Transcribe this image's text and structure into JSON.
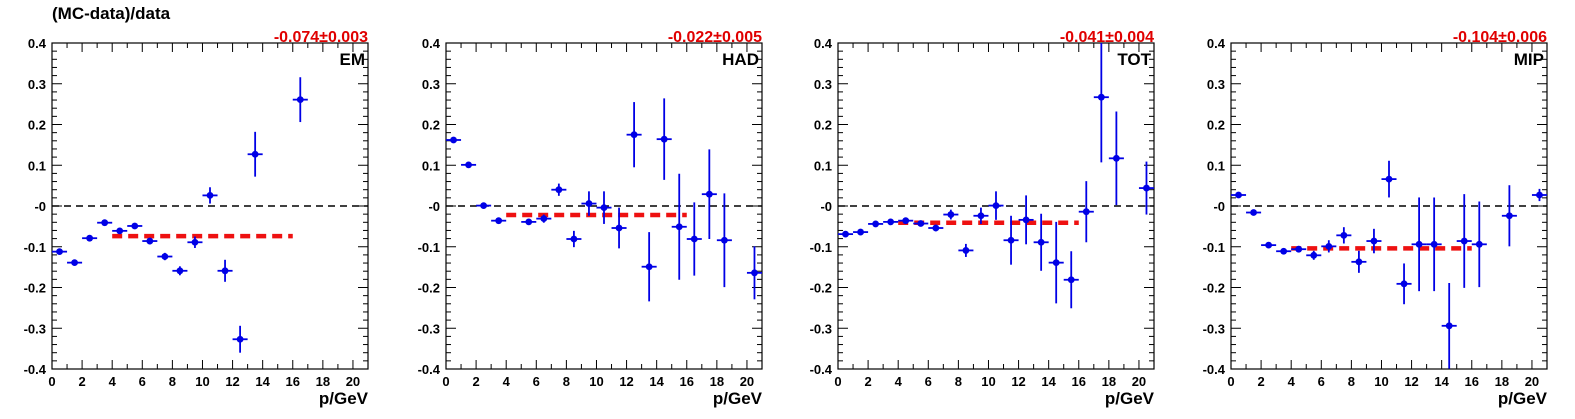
{
  "figure": {
    "ylabel": "(MC-data)/data"
  },
  "chart_data": [
    {
      "type": "scatter",
      "panel_label": "EM",
      "fit_result": "-0.074±0.003",
      "xlabel": "p/GeV",
      "ylabel": "(MC-data)/data",
      "xlim": [
        0,
        21
      ],
      "ylim": [
        -0.4,
        0.4
      ],
      "xticks": [
        "0",
        "2",
        "4",
        "6",
        "8",
        "10",
        "12",
        "14",
        "16",
        "18",
        "20"
      ],
      "yticks": [
        "-0.4",
        "-0.3",
        "-0.2",
        "-0.1",
        "-0",
        "0.1",
        "0.2",
        "0.3",
        "0.4"
      ],
      "reference_line": 0,
      "fit_line": {
        "x": [
          4,
          16
        ],
        "y": -0.074
      },
      "points": [
        {
          "x": 0.5,
          "y": -0.112,
          "err": 0.006
        },
        {
          "x": 1.5,
          "y": -0.139,
          "err": 0.005
        },
        {
          "x": 2.5,
          "y": -0.079,
          "err": 0.005
        },
        {
          "x": 3.5,
          "y": -0.041,
          "err": 0.005
        },
        {
          "x": 4.5,
          "y": -0.061,
          "err": 0.006
        },
        {
          "x": 5.5,
          "y": -0.049,
          "err": 0.006
        },
        {
          "x": 6.5,
          "y": -0.086,
          "err": 0.008
        },
        {
          "x": 7.5,
          "y": -0.124,
          "err": 0.009
        },
        {
          "x": 8.5,
          "y": -0.159,
          "err": 0.011
        },
        {
          "x": 9.5,
          "y": -0.089,
          "err": 0.014
        },
        {
          "x": 10.5,
          "y": 0.026,
          "err": 0.02
        },
        {
          "x": 11.5,
          "y": -0.159,
          "err": 0.027
        },
        {
          "x": 12.5,
          "y": -0.327,
          "err": 0.033
        },
        {
          "x": 13.5,
          "y": 0.127,
          "err": 0.055
        },
        {
          "x": 16.5,
          "y": 0.261,
          "err": 0.055
        }
      ]
    },
    {
      "type": "scatter",
      "panel_label": "HAD",
      "fit_result": "-0.022±0.005",
      "xlabel": "p/GeV",
      "ylabel": "",
      "xlim": [
        0,
        21
      ],
      "ylim": [
        -0.4,
        0.4
      ],
      "xticks": [
        "0",
        "2",
        "4",
        "6",
        "8",
        "10",
        "12",
        "14",
        "16",
        "18",
        "20"
      ],
      "yticks": [
        "-0.4",
        "-0.3",
        "-0.2",
        "-0.1",
        "-0",
        "0.1",
        "0.2",
        "0.3",
        "0.4"
      ],
      "reference_line": 0,
      "fit_line": {
        "x": [
          4,
          16
        ],
        "y": -0.022
      },
      "points": [
        {
          "x": 0.5,
          "y": 0.162,
          "err": 0.005
        },
        {
          "x": 1.5,
          "y": 0.101,
          "err": 0.004
        },
        {
          "x": 2.5,
          "y": 0.001,
          "err": 0.004
        },
        {
          "x": 3.5,
          "y": -0.036,
          "err": 0.005
        },
        {
          "x": 5.5,
          "y": -0.039,
          "err": 0.006
        },
        {
          "x": 6.5,
          "y": -0.031,
          "err": 0.01
        },
        {
          "x": 7.5,
          "y": 0.04,
          "err": 0.015
        },
        {
          "x": 8.5,
          "y": -0.081,
          "err": 0.02
        },
        {
          "x": 9.5,
          "y": 0.006,
          "err": 0.03
        },
        {
          "x": 10.5,
          "y": -0.004,
          "err": 0.04
        },
        {
          "x": 11.5,
          "y": -0.054,
          "err": 0.05
        },
        {
          "x": 12.5,
          "y": 0.175,
          "err": 0.08
        },
        {
          "x": 13.5,
          "y": -0.149,
          "err": 0.085
        },
        {
          "x": 14.5,
          "y": 0.164,
          "err": 0.1
        },
        {
          "x": 15.5,
          "y": -0.051,
          "err": 0.13
        },
        {
          "x": 16.5,
          "y": -0.081,
          "err": 0.09
        },
        {
          "x": 17.5,
          "y": 0.029,
          "err": 0.11
        },
        {
          "x": 18.5,
          "y": -0.084,
          "err": 0.115
        },
        {
          "x": 20.5,
          "y": -0.164,
          "err": 0.065
        }
      ]
    },
    {
      "type": "scatter",
      "panel_label": "TOT",
      "fit_result": "-0.041±0.004",
      "xlabel": "p/GeV",
      "ylabel": "",
      "xlim": [
        0,
        21
      ],
      "ylim": [
        -0.4,
        0.4
      ],
      "xticks": [
        "0",
        "2",
        "4",
        "6",
        "8",
        "10",
        "12",
        "14",
        "16",
        "18",
        "20"
      ],
      "yticks": [
        "-0.4",
        "-0.3",
        "-0.2",
        "-0.1",
        "-0",
        "0.1",
        "0.2",
        "0.3",
        "0.4"
      ],
      "reference_line": 0,
      "fit_line": {
        "x": [
          4,
          16
        ],
        "y": -0.041
      },
      "points": [
        {
          "x": 0.5,
          "y": -0.069,
          "err": 0.005
        },
        {
          "x": 1.5,
          "y": -0.064,
          "err": 0.005
        },
        {
          "x": 2.5,
          "y": -0.044,
          "err": 0.005
        },
        {
          "x": 3.5,
          "y": -0.039,
          "err": 0.005
        },
        {
          "x": 4.5,
          "y": -0.036,
          "err": 0.005
        },
        {
          "x": 5.5,
          "y": -0.043,
          "err": 0.006
        },
        {
          "x": 6.5,
          "y": -0.054,
          "err": 0.008
        },
        {
          "x": 7.5,
          "y": -0.021,
          "err": 0.012
        },
        {
          "x": 8.5,
          "y": -0.109,
          "err": 0.016
        },
        {
          "x": 9.5,
          "y": -0.024,
          "err": 0.02
        },
        {
          "x": 10.5,
          "y": 0.001,
          "err": 0.035
        },
        {
          "x": 11.5,
          "y": -0.084,
          "err": 0.06
        },
        {
          "x": 12.5,
          "y": -0.034,
          "err": 0.06
        },
        {
          "x": 13.5,
          "y": -0.089,
          "err": 0.07
        },
        {
          "x": 14.5,
          "y": -0.139,
          "err": 0.1
        },
        {
          "x": 15.5,
          "y": -0.181,
          "err": 0.07
        },
        {
          "x": 16.5,
          "y": -0.014,
          "err": 0.075
        },
        {
          "x": 17.5,
          "y": 0.267,
          "err": 0.16
        },
        {
          "x": 18.5,
          "y": 0.117,
          "err": 0.115
        },
        {
          "x": 20.5,
          "y": 0.044,
          "err": 0.065
        }
      ]
    },
    {
      "type": "scatter",
      "panel_label": "MIP",
      "fit_result": "-0.104±0.006",
      "xlabel": "p/GeV",
      "ylabel": "",
      "xlim": [
        0,
        21
      ],
      "ylim": [
        -0.4,
        0.4
      ],
      "xticks": [
        "0",
        "2",
        "4",
        "6",
        "8",
        "10",
        "12",
        "14",
        "16",
        "18",
        "20"
      ],
      "yticks": [
        "-0.4",
        "-0.3",
        "-0.2",
        "-0.1",
        "-0",
        "0.1",
        "0.2",
        "0.3",
        "0.4"
      ],
      "reference_line": 0,
      "fit_line": {
        "x": [
          4,
          16
        ],
        "y": -0.104
      },
      "points": [
        {
          "x": 0.5,
          "y": 0.027,
          "err": 0.007
        },
        {
          "x": 1.5,
          "y": -0.016,
          "err": 0.006
        },
        {
          "x": 2.5,
          "y": -0.096,
          "err": 0.007
        },
        {
          "x": 3.5,
          "y": -0.111,
          "err": 0.007
        },
        {
          "x": 4.5,
          "y": -0.106,
          "err": 0.008
        },
        {
          "x": 5.5,
          "y": -0.121,
          "err": 0.011
        },
        {
          "x": 6.5,
          "y": -0.099,
          "err": 0.015
        },
        {
          "x": 7.5,
          "y": -0.072,
          "err": 0.02
        },
        {
          "x": 8.5,
          "y": -0.137,
          "err": 0.027
        },
        {
          "x": 9.5,
          "y": -0.086,
          "err": 0.03
        },
        {
          "x": 10.5,
          "y": 0.066,
          "err": 0.045
        },
        {
          "x": 11.5,
          "y": -0.191,
          "err": 0.05
        },
        {
          "x": 12.5,
          "y": -0.094,
          "err": 0.115
        },
        {
          "x": 13.5,
          "y": -0.094,
          "err": 0.115
        },
        {
          "x": 14.5,
          "y": -0.294,
          "err": 0.105
        },
        {
          "x": 15.5,
          "y": -0.086,
          "err": 0.115
        },
        {
          "x": 16.5,
          "y": -0.094,
          "err": 0.105
        },
        {
          "x": 18.5,
          "y": -0.024,
          "err": 0.075
        },
        {
          "x": 20.5,
          "y": 0.027,
          "err": 0.015
        }
      ]
    }
  ]
}
